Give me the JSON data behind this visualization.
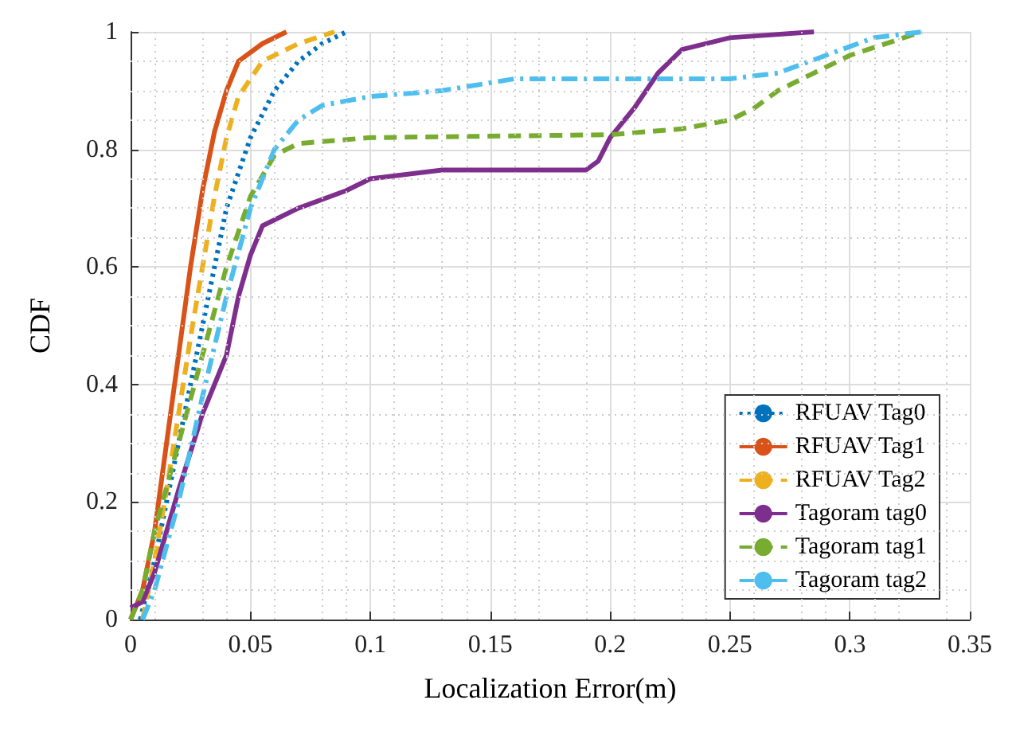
{
  "chart_data": {
    "type": "line",
    "xlabel": "Localization Error(m)",
    "ylabel": "CDF",
    "xlim": [
      0,
      0.35
    ],
    "ylim": [
      0,
      1
    ],
    "xticks": [
      0,
      0.05,
      0.1,
      0.15,
      0.2,
      0.25,
      0.3,
      0.35
    ],
    "yticks": [
      0,
      0.2,
      0.4,
      0.6,
      0.8,
      1
    ],
    "grid": true,
    "legend": "bottom right",
    "marker": "none",
    "series": [
      {
        "name": "RFUAV Tag0",
        "color": "#0072bd",
        "line_style": "dotted",
        "x": [
          0.004,
          0.01,
          0.015,
          0.02,
          0.025,
          0.03,
          0.035,
          0.04,
          0.05,
          0.06,
          0.07,
          0.08,
          0.09
        ],
        "values": [
          0,
          0.1,
          0.2,
          0.3,
          0.4,
          0.5,
          0.6,
          0.7,
          0.82,
          0.9,
          0.95,
          0.98,
          1
        ]
      },
      {
        "name": "RFUAV Tag1",
        "color": "#d95319",
        "line_style": "solid",
        "x": [
          0,
          0.005,
          0.01,
          0.015,
          0.02,
          0.025,
          0.03,
          0.035,
          0.04,
          0.045,
          0.055,
          0.065
        ],
        "values": [
          0,
          0.05,
          0.15,
          0.3,
          0.45,
          0.6,
          0.73,
          0.83,
          0.9,
          0.95,
          0.98,
          1
        ]
      },
      {
        "name": "RFUAV Tag2",
        "color": "#edb120",
        "line_style": "dashed",
        "x": [
          0.005,
          0.01,
          0.015,
          0.02,
          0.025,
          0.03,
          0.035,
          0.04,
          0.045,
          0.055,
          0.07,
          0.085
        ],
        "values": [
          0,
          0.1,
          0.22,
          0.35,
          0.48,
          0.6,
          0.72,
          0.82,
          0.89,
          0.95,
          0.98,
          1
        ]
      },
      {
        "name": "Tagoram tag0",
        "color": "#7e2f8e",
        "line_style": "solid",
        "x": [
          0,
          0.005,
          0.01,
          0.015,
          0.02,
          0.03,
          0.04,
          0.045,
          0.05,
          0.055,
          0.07,
          0.09,
          0.1,
          0.13,
          0.19,
          0.195,
          0.2,
          0.21,
          0.22,
          0.23,
          0.25,
          0.285
        ],
        "values": [
          0.02,
          0.03,
          0.08,
          0.15,
          0.22,
          0.35,
          0.45,
          0.55,
          0.62,
          0.67,
          0.7,
          0.73,
          0.75,
          0.765,
          0.765,
          0.78,
          0.82,
          0.87,
          0.93,
          0.97,
          0.99,
          1
        ]
      },
      {
        "name": "Tagoram tag1",
        "color": "#77ac30",
        "line_style": "dashed",
        "x": [
          0,
          0.005,
          0.01,
          0.02,
          0.03,
          0.04,
          0.05,
          0.06,
          0.07,
          0.1,
          0.2,
          0.23,
          0.25,
          0.26,
          0.27,
          0.28,
          0.3,
          0.33
        ],
        "values": [
          0,
          0.05,
          0.15,
          0.3,
          0.45,
          0.6,
          0.72,
          0.79,
          0.81,
          0.82,
          0.825,
          0.835,
          0.85,
          0.87,
          0.9,
          0.92,
          0.96,
          1
        ]
      },
      {
        "name": "Tagoram tag2",
        "color": "#4dbeee",
        "line_style": "dashdot",
        "x": [
          0.005,
          0.01,
          0.02,
          0.03,
          0.04,
          0.05,
          0.06,
          0.07,
          0.08,
          0.1,
          0.13,
          0.16,
          0.25,
          0.27,
          0.29,
          0.31,
          0.33
        ],
        "values": [
          0,
          0.05,
          0.2,
          0.38,
          0.55,
          0.7,
          0.8,
          0.85,
          0.875,
          0.89,
          0.9,
          0.92,
          0.92,
          0.93,
          0.96,
          0.99,
          1
        ]
      }
    ]
  }
}
